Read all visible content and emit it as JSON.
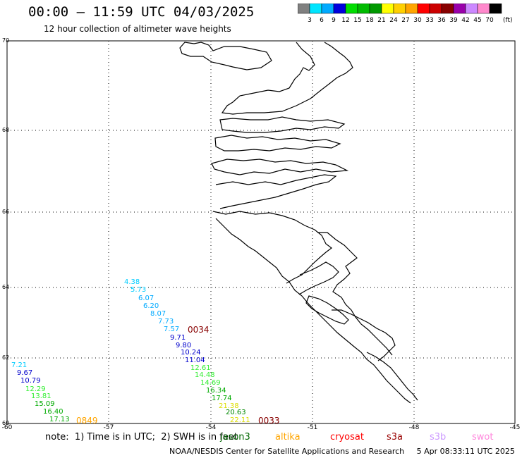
{
  "header": {
    "title": "00:00 – 11:59 UTC 04/03/2025",
    "subtitle": "12 hour collection of altimeter wave heights"
  },
  "colorbar": {
    "unit": "(ft)",
    "ticks": [
      "3",
      "6",
      "9",
      "12",
      "15",
      "18",
      "21",
      "24",
      "27",
      "30",
      "33",
      "36",
      "39",
      "42",
      "45",
      "70"
    ],
    "colors": [
      "#808080",
      "#00e5ff",
      "#00aaff",
      "#0000dd",
      "#00dd00",
      "#00bb00",
      "#009900",
      "#ffff00",
      "#ffd000",
      "#ffa500",
      "#ff0000",
      "#cc0000",
      "#880000",
      "#9900aa",
      "#cc88ff",
      "#ff88cc",
      "#000000"
    ]
  },
  "map": {
    "y_axis_labels": [
      "70",
      "68",
      "66",
      "64",
      "62",
      "60"
    ],
    "x_axis_labels": [
      "-60",
      "-57",
      "-54",
      "-51",
      "-48",
      "-45"
    ],
    "lat_range": [
      60,
      70
    ],
    "lon_range": [
      -60,
      -45
    ]
  },
  "tracks": [
    {
      "name": "track-upper",
      "points": [
        {
          "label": "4.38",
          "color": "#00ccff"
        },
        {
          "label": "5.73",
          "color": "#00ccff"
        },
        {
          "label": "6.07",
          "color": "#00aaff"
        },
        {
          "label": "6.20",
          "color": "#00aaff"
        },
        {
          "label": "8.07",
          "color": "#00aaff"
        },
        {
          "label": "7.73",
          "color": "#00aaff"
        },
        {
          "label": "7.57",
          "color": "#00aaff"
        },
        {
          "label": "9.71",
          "color": "#0000cc"
        },
        {
          "label": "9.80",
          "color": "#0000cc"
        },
        {
          "label": "10.24",
          "color": "#0000cc"
        },
        {
          "label": "11.04",
          "color": "#0000cc"
        },
        {
          "label": "12.61",
          "color": "#33ee33"
        },
        {
          "label": "14.48",
          "color": "#33ee33"
        },
        {
          "label": "14.69",
          "color": "#33ee33"
        },
        {
          "label": "16.34",
          "color": "#00aa00"
        },
        {
          "label": "17.74",
          "color": "#00aa00"
        },
        {
          "label": "21.38",
          "color": "#dddd00"
        },
        {
          "label": "20.63",
          "color": "#008800"
        },
        {
          "label": "22.11",
          "color": "#dddd00"
        }
      ]
    },
    {
      "name": "track-lower",
      "points": [
        {
          "label": "7.21",
          "color": "#00ccff"
        },
        {
          "label": "9.67",
          "color": "#0000cc"
        },
        {
          "label": "10.79",
          "color": "#0000cc"
        },
        {
          "label": "12.29",
          "color": "#33ee33"
        },
        {
          "label": "13.81",
          "color": "#33ee33"
        },
        {
          "label": "15.09",
          "color": "#00aa00"
        },
        {
          "label": "16.40",
          "color": "#00aa00"
        },
        {
          "label": "17.13",
          "color": "#00aa00"
        }
      ]
    }
  ],
  "time_labels": [
    {
      "label": "0034",
      "color": "#880000"
    },
    {
      "label": "0033",
      "color": "#880000"
    },
    {
      "label": "0849",
      "color": "#ffa500"
    }
  ],
  "footer": {
    "note": "note:  1) Time is in UTC;  2) SWH is in feet",
    "credit": "NOAA/NESDIS Center for Satellite Applications and Research     5 Apr 08:33:11 UTC 2025",
    "satellites": [
      {
        "label": "jason3",
        "color": "#006600"
      },
      {
        "label": "altika",
        "color": "#ffa500"
      },
      {
        "label": "cryosat",
        "color": "#ff0000"
      },
      {
        "label": "s3a",
        "color": "#990000"
      },
      {
        "label": "s3b",
        "color": "#cc99ff"
      },
      {
        "label": "swot",
        "color": "#ff88dd"
      }
    ]
  }
}
